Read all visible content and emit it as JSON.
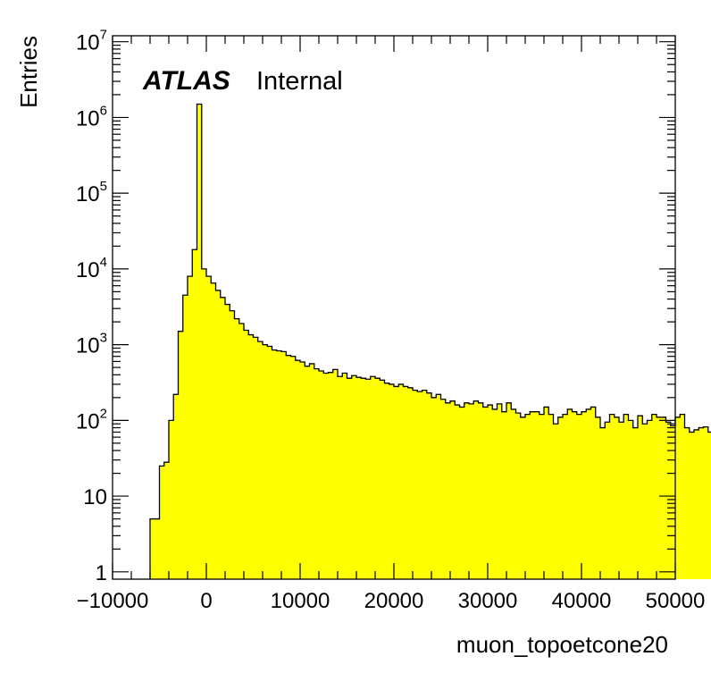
{
  "chart_data": {
    "type": "histogram",
    "xlabel": "muon_topoetcone20",
    "ylabel": "Entries",
    "xlim": [
      -10000,
      50000
    ],
    "ylim": [
      0.8,
      12000000
    ],
    "yscale": "log",
    "fill_color": "#ffff00",
    "line_color": "#000000",
    "bin_width": 500,
    "x_start": -6000,
    "labels": {
      "experiment": "ATLAS",
      "status": "Internal"
    },
    "x_ticks": [
      {
        "value": -10000,
        "label": "−10000"
      },
      {
        "value": 0,
        "label": "0"
      },
      {
        "value": 10000,
        "label": "10000"
      },
      {
        "value": 20000,
        "label": "20000"
      },
      {
        "value": 30000,
        "label": "30000"
      },
      {
        "value": 40000,
        "label": "40000"
      },
      {
        "value": 50000,
        "label": "50000"
      }
    ],
    "y_ticks": [
      {
        "value": 1,
        "label": "1",
        "sup": ""
      },
      {
        "value": 10,
        "label": "10",
        "sup": ""
      },
      {
        "value": 100,
        "label": "10",
        "sup": "2"
      },
      {
        "value": 1000,
        "label": "10",
        "sup": "3"
      },
      {
        "value": 10000,
        "label": "10",
        "sup": "4"
      },
      {
        "value": 100000,
        "label": "10",
        "sup": "5"
      },
      {
        "value": 1000000,
        "label": "10",
        "sup": "6"
      },
      {
        "value": 10000000,
        "label": "10",
        "sup": "7"
      }
    ],
    "values": [
      5,
      5,
      25,
      28,
      100,
      220,
      1500,
      4500,
      8000,
      18000,
      1500000,
      10000,
      8000,
      6500,
      5200,
      4200,
      3400,
      2800,
      2200,
      1900,
      1550,
      1350,
      1250,
      1100,
      1000,
      950,
      850,
      830,
      810,
      720,
      700,
      620,
      590,
      520,
      560,
      480,
      450,
      420,
      430,
      470,
      380,
      420,
      360,
      390,
      370,
      360,
      350,
      380,
      360,
      340,
      310,
      300,
      280,
      300,
      280,
      270,
      250,
      240,
      250,
      230,
      200,
      220,
      190,
      170,
      180,
      160,
      150,
      170,
      165,
      180,
      170,
      150,
      160,
      140,
      165,
      130,
      170,
      140,
      125,
      110,
      120,
      130,
      130,
      120,
      150,
      120,
      90,
      110,
      120,
      140,
      130,
      120,
      130,
      140,
      150,
      110,
      80,
      95,
      120,
      110,
      95,
      120,
      100,
      80,
      115,
      90,
      100,
      120,
      110,
      110,
      95,
      85,
      110,
      120,
      80,
      70,
      75,
      80,
      82,
      70
    ]
  }
}
